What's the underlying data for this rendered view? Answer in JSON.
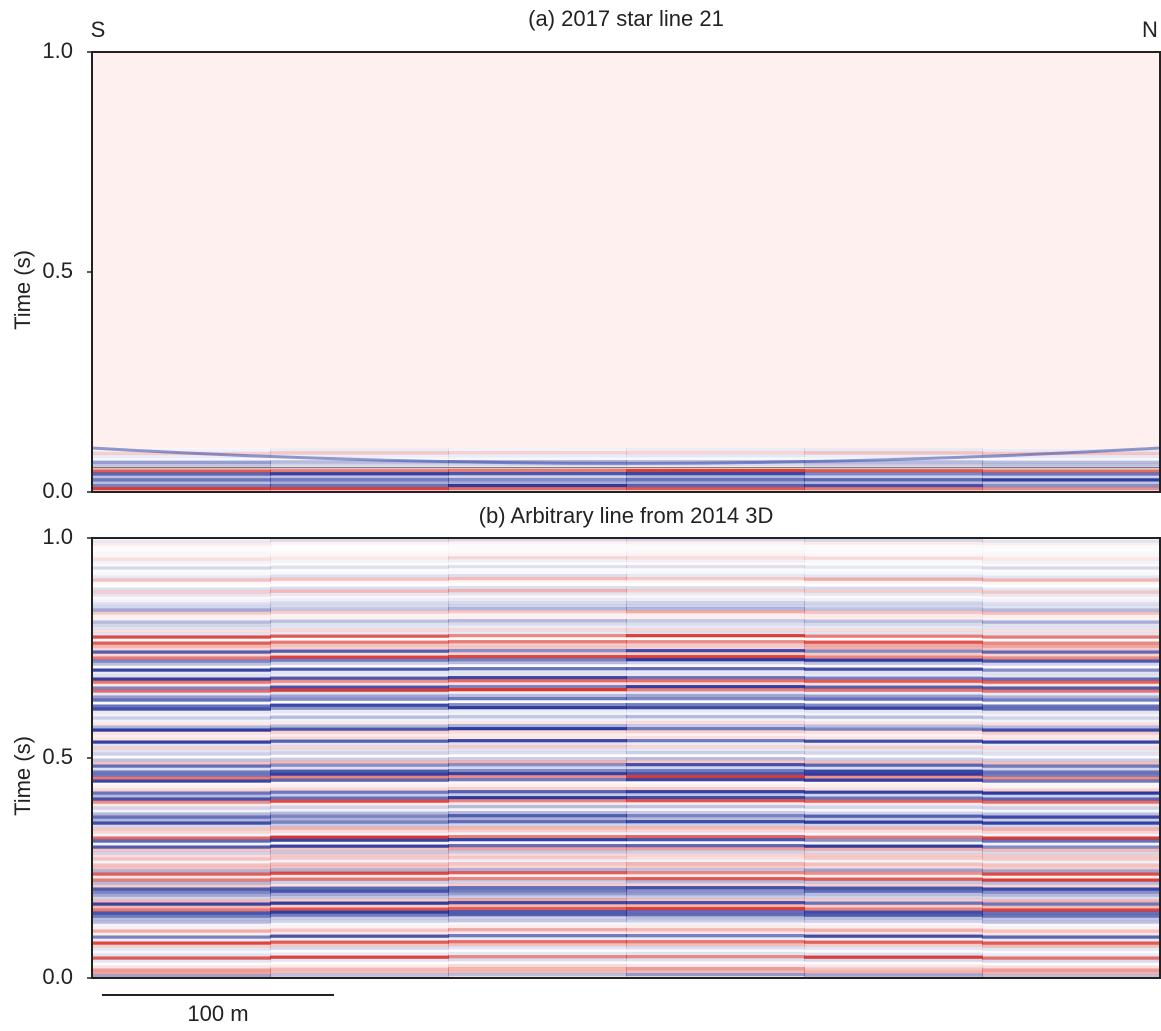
{
  "chart_data": [
    {
      "type": "seismic",
      "title": "(a) 2017 star line 21",
      "ylabel": "Time (s)",
      "annotations": [
        "S",
        "N"
      ],
      "ylim": [
        0,
        1
      ],
      "yticks": [
        {
          "value": 0,
          "label": "0.0"
        },
        0.5,
        {
          "value": 1,
          "label": "1.0"
        }
      ]
    },
    {
      "type": "seismic",
      "title": "(b) Arbitrary line from 2014 3D",
      "ylabel": "Time (s)",
      "ylim": [
        0,
        1
      ],
      "yticks": [
        {
          "value": 0,
          "label": "0.0"
        },
        0.5,
        {
          "value": 1,
          "label": "1.0"
        }
      ]
    }
  ],
  "scale_bar": {
    "label": "100 m"
  }
}
